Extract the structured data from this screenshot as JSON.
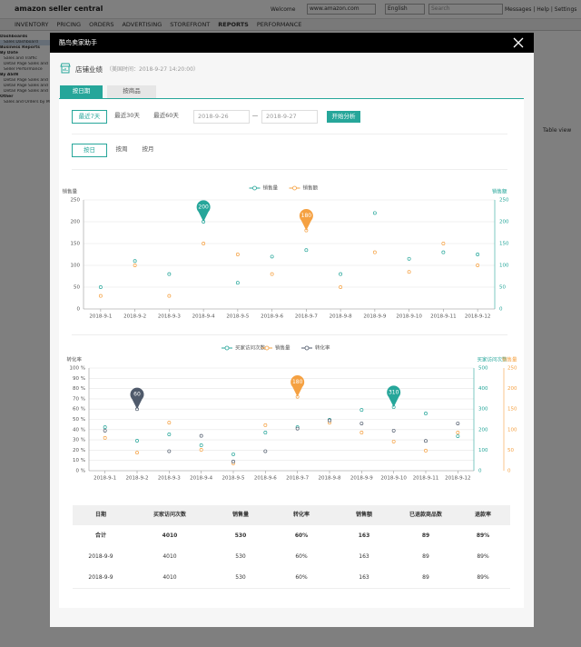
{
  "amazon": {
    "logo": "amazon seller central",
    "welcome": "Welcome",
    "marketplace": "www.amazon.com",
    "language": "English",
    "search": "Search",
    "links": "Messages | Help | Settings",
    "nav": [
      "INVENTORY",
      "PRICING",
      "ORDERS",
      "ADVERTISING",
      "STOREFRONT",
      "REPORTS",
      "PERFORMANCE"
    ],
    "sidebar": [
      "Dashboards",
      "Sales Dashboard",
      "Business Reports",
      "By Date",
      "Sales and Traffic",
      "Detail Page Sales and Traffic",
      "Seller Performance",
      "By ASIN",
      "Detail Page Sales and Traffic",
      "Detail Page Sales and Traffic by Parent Item",
      "Detail Page Sales and Traffic by Child Item",
      "Other",
      "Sales and Orders by Month"
    ],
    "table_view": "Table view"
  },
  "modal": {
    "title": "酷鸟卖家助手",
    "section": "店铺业绩",
    "time": "（美国时间：2018-9-27 14:20:00）",
    "tabs": [
      "按日期",
      "按商品"
    ],
    "ranges": [
      "最近7天",
      "最近30天",
      "最近60天"
    ],
    "date_from": "2018-9-26",
    "date_sep": "—",
    "date_to": "2018-9-27",
    "analyze": "开始分析",
    "granularity": [
      "按日",
      "按周",
      "按月"
    ]
  },
  "chart_data": [
    {
      "type": "line",
      "legend": "top",
      "categories": [
        "2018-9-1",
        "2018-9-2",
        "2018-9-3",
        "2018-9-4",
        "2018-9-5",
        "2018-9-6",
        "2018-9-7",
        "2018-9-8",
        "2018-9-9",
        "2018-9-10",
        "2018-9-11",
        "2018-9-12"
      ],
      "y_label": "销售量",
      "ylim": [
        0,
        250
      ],
      "yticks": [
        0,
        50,
        100,
        150,
        200,
        250
      ],
      "y2_label": "销售额",
      "y2lim": [
        0,
        250
      ],
      "y2ticks": [
        0,
        50,
        100,
        150,
        200,
        250
      ],
      "grid": true,
      "series": [
        {
          "name": "销售量",
          "color": "#26a69a",
          "values": [
            50,
            110,
            80,
            200,
            60,
            120,
            135,
            80,
            220,
            115,
            130,
            125
          ],
          "value_labels": [
            null,
            null,
            null,
            "200",
            null,
            null,
            null,
            null,
            null,
            null,
            null,
            null
          ]
        },
        {
          "name": "销售额",
          "color": "#f5a142",
          "axis": "y2",
          "values": [
            30,
            100,
            30,
            150,
            125,
            80,
            180,
            50,
            130,
            85,
            150,
            100
          ],
          "value_labels": [
            null,
            null,
            null,
            null,
            null,
            null,
            "180",
            null,
            null,
            null,
            null,
            null
          ]
        }
      ]
    },
    {
      "type": "line",
      "legend": "top",
      "categories": [
        "2018-9-1",
        "2018-9-2",
        "2018-9-3",
        "2018-9-4",
        "2018-9-5",
        "2018-9-6",
        "2018-9-7",
        "2018-9-8",
        "2018-9-9",
        "2018-9-10",
        "2018-9-11",
        "2018-9-12"
      ],
      "y_label": "转化率",
      "ylim": [
        0,
        100
      ],
      "yticks": [
        {
          "value": 0,
          "label": "0 %"
        },
        {
          "value": 10,
          "label": "10 %"
        },
        {
          "value": 20,
          "label": "20 %"
        },
        {
          "value": 30,
          "label": "30 %"
        },
        {
          "value": 40,
          "label": "40 %"
        },
        {
          "value": 50,
          "label": "50 %"
        },
        {
          "value": 60,
          "label": "60 %"
        },
        {
          "value": 70,
          "label": "70 %"
        },
        {
          "value": 80,
          "label": "80 %"
        },
        {
          "value": 90,
          "label": "90 %"
        },
        {
          "value": 100,
          "label": "100 %"
        }
      ],
      "y2_label": "买家访问次数",
      "y2lim": [
        0,
        500
      ],
      "y2ticks": [
        0,
        100,
        200,
        300,
        400,
        500
      ],
      "y3_label": "销售量",
      "y3lim": [
        0,
        250
      ],
      "y3ticks": [
        0,
        50,
        100,
        150,
        200,
        250
      ],
      "grid": true,
      "series": [
        {
          "name": "买家访问次数",
          "color": "#26a69a",
          "axis": "y2",
          "values": [
            212,
            146,
            177,
            124,
            80,
            186,
            212,
            248,
            296,
            310,
            279,
            168
          ],
          "value_labels": [
            null,
            null,
            null,
            null,
            null,
            null,
            null,
            null,
            null,
            "310",
            null,
            null
          ]
        },
        {
          "name": "销售量",
          "color": "#f5a142",
          "axis": "y3",
          "values": [
            80,
            44,
            117,
            51,
            18,
            111,
            180,
            117,
            93,
            71,
            49,
            93
          ],
          "value_labels": [
            null,
            null,
            null,
            null,
            null,
            null,
            "180",
            null,
            null,
            null,
            null,
            null
          ]
        },
        {
          "name": "转化率",
          "color": "#4f5a6b",
          "values": [
            39,
            60,
            19,
            34,
            9,
            19,
            41,
            49,
            46,
            39,
            29,
            46
          ],
          "value_labels": [
            null,
            "60",
            null,
            null,
            null,
            null,
            null,
            null,
            null,
            null,
            null,
            null
          ]
        }
      ]
    }
  ],
  "table": {
    "headers": [
      "日期",
      "买家访问次数",
      "销售量",
      "转化率",
      "销售额",
      "已退款商品数",
      "退款率"
    ],
    "rows": [
      [
        "合计",
        "4010",
        "530",
        "60%",
        "163",
        "89",
        "89%"
      ],
      [
        "2018-9-9",
        "4010",
        "530",
        "60%",
        "163",
        "89",
        "89%"
      ],
      [
        "2018-9-9",
        "4010",
        "530",
        "60%",
        "163",
        "89",
        "89%"
      ]
    ]
  }
}
